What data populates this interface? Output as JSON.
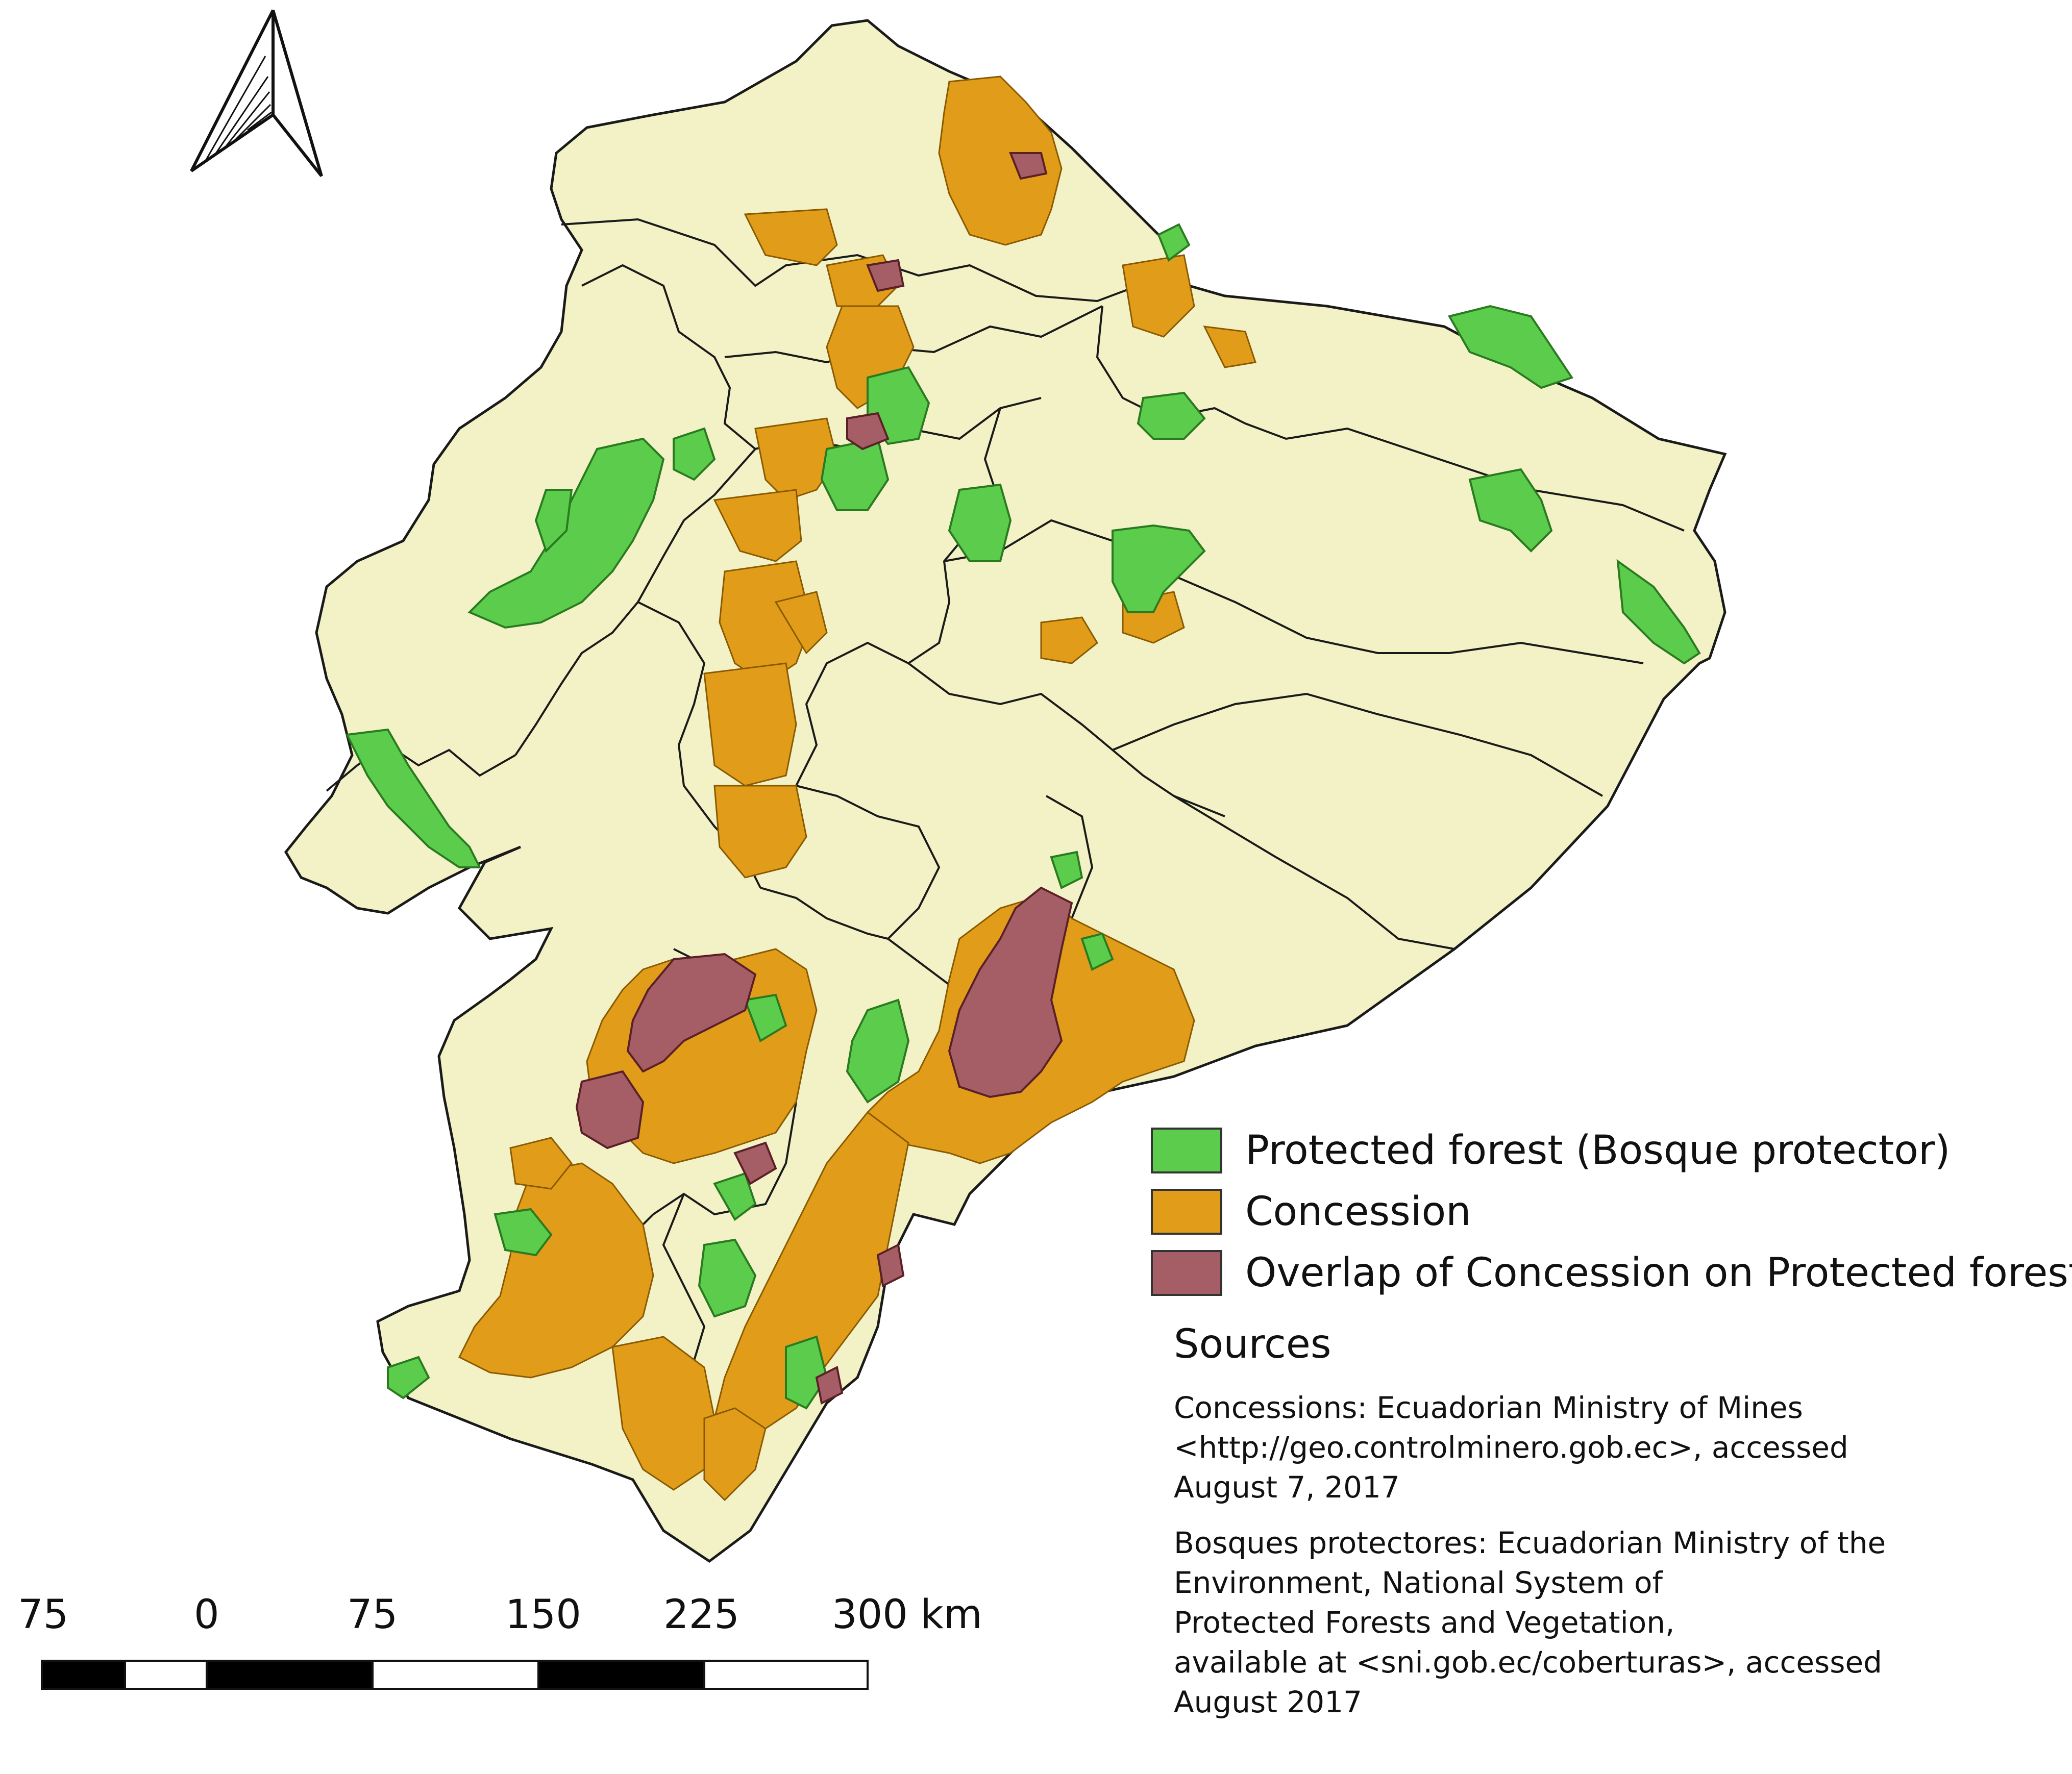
{
  "legend": {
    "items": [
      {
        "label": "Protected forest (Bosque protector)",
        "color": "#5ccc4c"
      },
      {
        "label": "Concession",
        "color": "#e19c1a"
      },
      {
        "label": "Overlap of Concession on Protected forest",
        "color": "#a65e66"
      }
    ]
  },
  "sources": {
    "title": "Sources",
    "concessions": "Concessions:  Ecuadorian Ministry of Mines\n<http://geo.controlminero.gob.ec>, accessed\nAugust 7, 2017",
    "bosques": "Bosques protectores: Ecuadorian Ministry of the\nEnvironment, National System of\nProtected Forests and Vegetation,\navailable at <sni.gob.ec/coberturas>, accessed\nAugust 2017"
  },
  "scale_bar": {
    "labels": [
      "75",
      "0",
      "75",
      "150",
      "225",
      "300 km"
    ]
  },
  "colors": {
    "land": "#f2f2c6",
    "forest": "#5ccc4c",
    "concession": "#e19c1a",
    "overlap": "#a65e66",
    "border": "#1a1a1a"
  },
  "icons": {
    "north_arrow": "north-arrow-icon"
  }
}
